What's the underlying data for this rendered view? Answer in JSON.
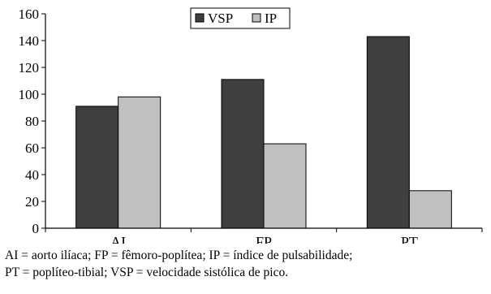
{
  "chart_data": {
    "type": "bar",
    "categories": [
      "AI",
      "FP",
      "PT"
    ],
    "series": [
      {
        "name": "VSP",
        "values": [
          91,
          111,
          143
        ],
        "color": "#3f3f3f"
      },
      {
        "name": "IP",
        "values": [
          98,
          63,
          28
        ],
        "color": "#c0c0c0"
      }
    ],
    "ylim": [
      0,
      160
    ],
    "yticks": [
      0,
      20,
      40,
      60,
      80,
      100,
      120,
      140,
      160
    ],
    "grid": false,
    "legend_position": "top-center"
  },
  "caption": {
    "line1": "AI = aorto ilíaca; FP = fêmoro-poplítea; IP = índice de pulsabilidade;",
    "line2": "PT = poplíteo-tibial; VSP = velocidade sistólica de pico."
  }
}
